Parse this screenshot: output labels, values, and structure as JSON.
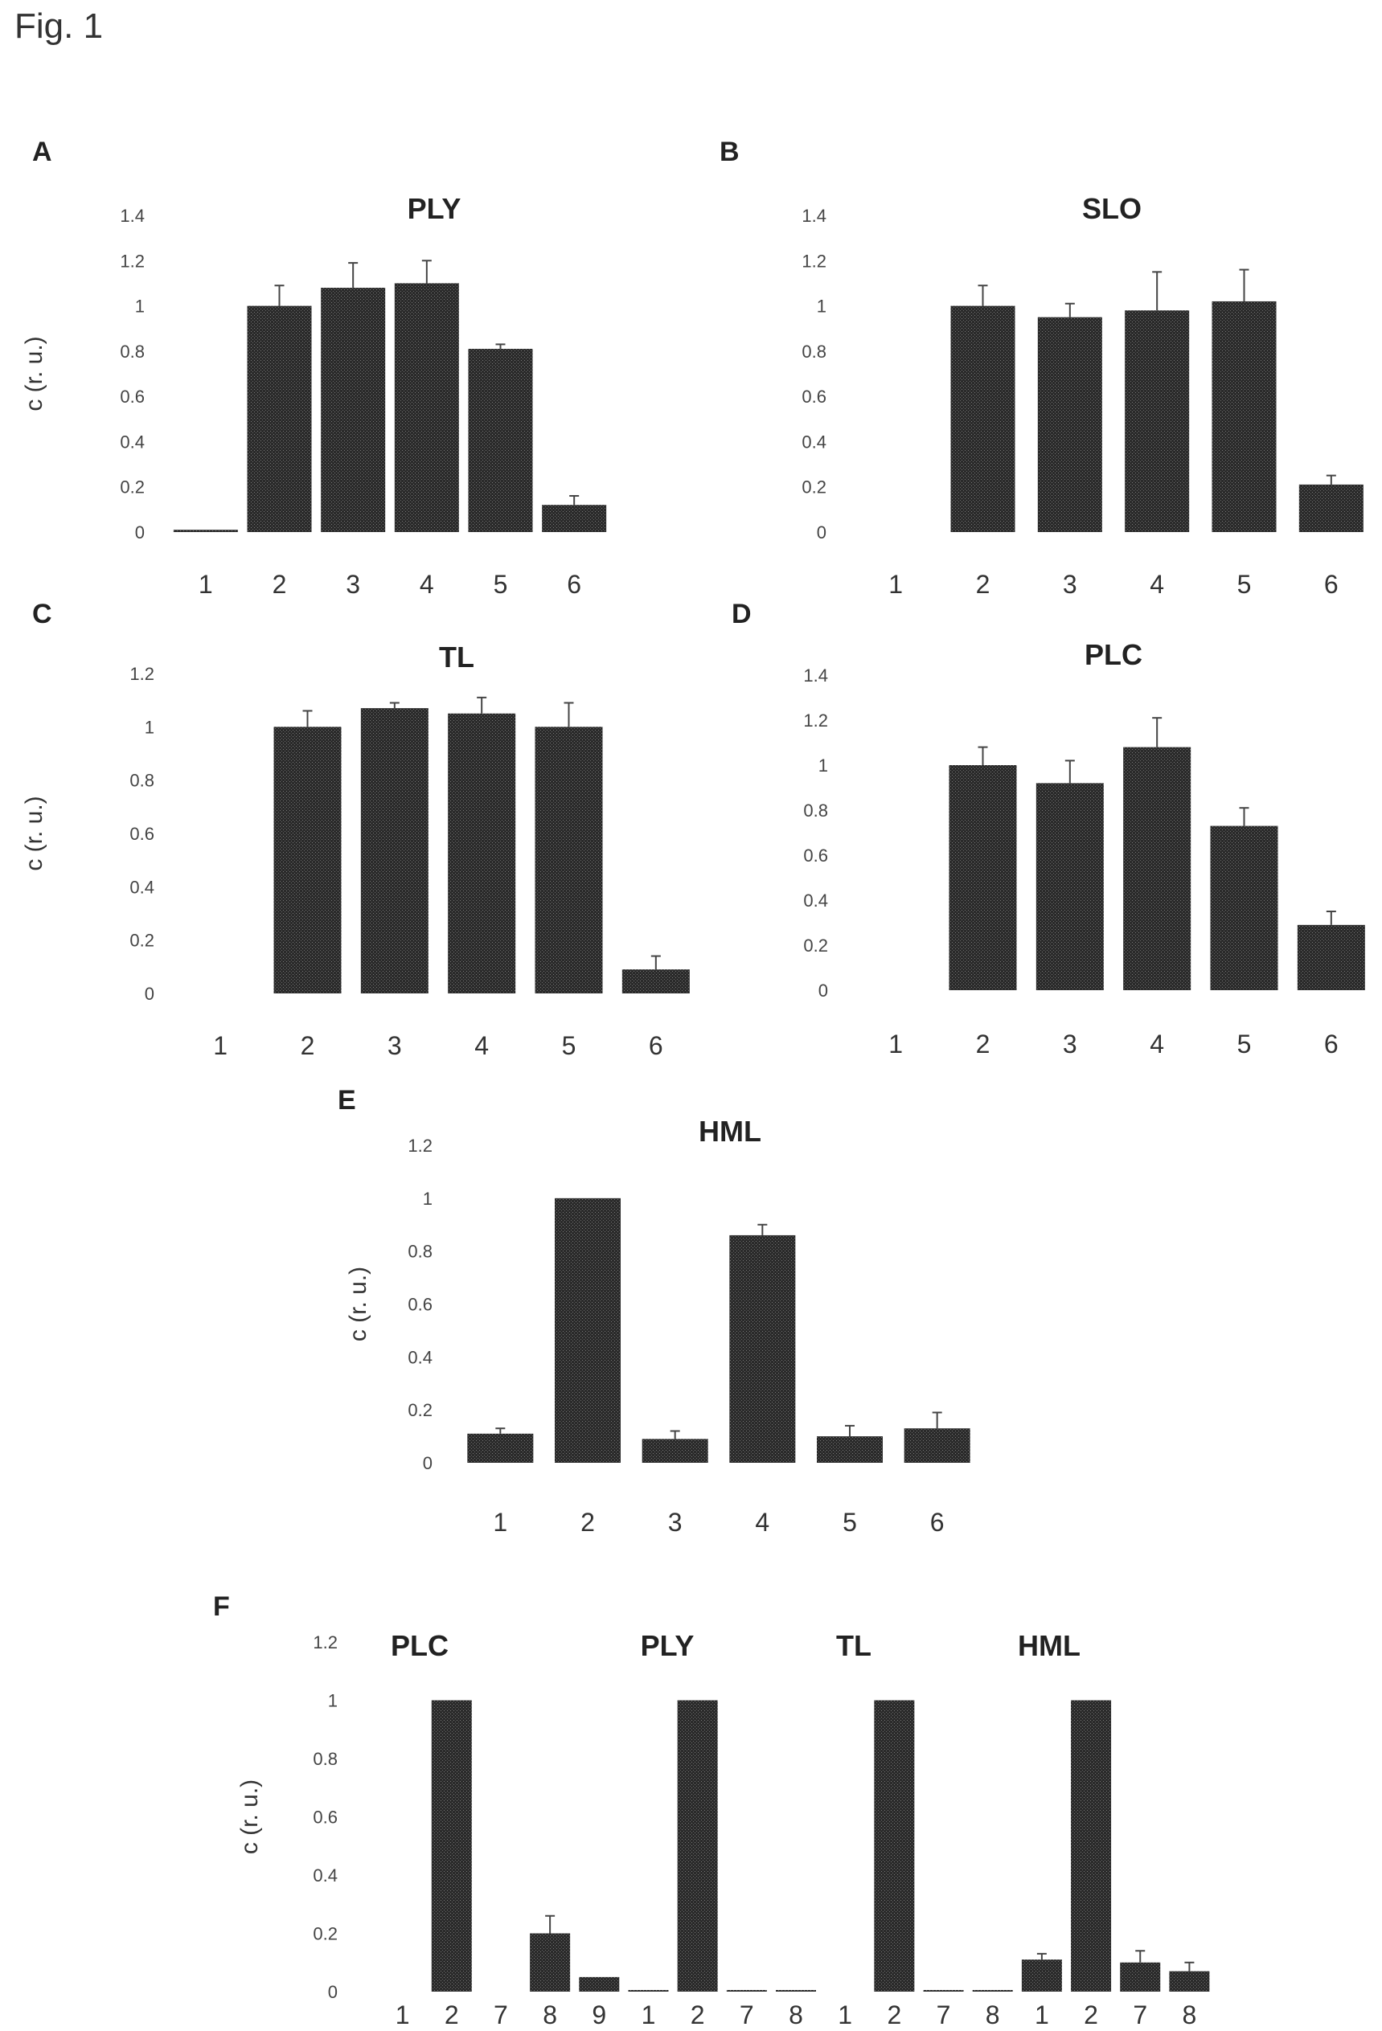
{
  "figure_title": "Fig. 1",
  "chart_data": [
    {
      "panel": "A",
      "type": "bar",
      "title": "PLY",
      "ylabel": "c (r. u.)",
      "yticks": [
        "0",
        "0.2",
        "0.4",
        "0.6",
        "0.8",
        "1",
        "1.2",
        "1.4"
      ],
      "ylim": [
        0,
        1.4
      ],
      "categories": [
        "1",
        "2",
        "3",
        "4",
        "5",
        "6"
      ],
      "values": [
        0.01,
        1.0,
        1.08,
        1.1,
        0.81,
        0.12
      ],
      "errors": [
        0,
        0.09,
        0.11,
        0.1,
        0.02,
        0.04
      ]
    },
    {
      "panel": "B",
      "type": "bar",
      "title": "SLO",
      "ylabel": "",
      "yticks": [
        "0",
        "0.2",
        "0.4",
        "0.6",
        "0.8",
        "1",
        "1.2",
        "1.4"
      ],
      "ylim": [
        0,
        1.4
      ],
      "categories": [
        "1",
        "2",
        "3",
        "4",
        "5",
        "6"
      ],
      "values": [
        0,
        1.0,
        0.95,
        0.98,
        1.02,
        0.21
      ],
      "errors": [
        0,
        0.09,
        0.06,
        0.17,
        0.14,
        0.04
      ]
    },
    {
      "panel": "C",
      "type": "bar",
      "title": "TL",
      "ylabel": "c (r. u.)",
      "yticks": [
        "0",
        "0.2",
        "0.4",
        "0.6",
        "0.8",
        "1",
        "1.2"
      ],
      "ylim": [
        0,
        1.2
      ],
      "categories": [
        "1",
        "2",
        "3",
        "4",
        "5",
        "6"
      ],
      "values": [
        0,
        1.0,
        1.07,
        1.05,
        1.0,
        0.09
      ],
      "errors": [
        0,
        0.06,
        0.02,
        0.06,
        0.09,
        0.05
      ]
    },
    {
      "panel": "D",
      "type": "bar",
      "title": "PLC",
      "ylabel": "",
      "yticks": [
        "0",
        "0.2",
        "0.4",
        "0.6",
        "0.8",
        "1",
        "1.2",
        "1.4"
      ],
      "ylim": [
        0,
        1.4
      ],
      "categories": [
        "1",
        "2",
        "3",
        "4",
        "5",
        "6"
      ],
      "values": [
        0,
        1.0,
        0.92,
        1.08,
        0.73,
        0.29
      ],
      "errors": [
        0,
        0.08,
        0.1,
        0.13,
        0.08,
        0.06
      ]
    },
    {
      "panel": "E",
      "type": "bar",
      "title": "HML",
      "ylabel": "c (r. u.)",
      "yticks": [
        "0",
        "0.2",
        "0.4",
        "0.6",
        "0.8",
        "1",
        "1.2"
      ],
      "ylim": [
        0,
        1.2
      ],
      "categories": [
        "1",
        "2",
        "3",
        "4",
        "5",
        "6"
      ],
      "values": [
        0.11,
        1.0,
        0.09,
        0.86,
        0.1,
        0.13
      ],
      "errors": [
        0.02,
        0,
        0.03,
        0.04,
        0.04,
        0.06
      ]
    },
    {
      "panel": "F",
      "type": "bar",
      "title": "",
      "ylabel": "c (r. u.)",
      "yticks": [
        "0",
        "0.2",
        "0.4",
        "0.6",
        "0.8",
        "1",
        "1.2"
      ],
      "ylim": [
        0,
        1.2
      ],
      "group_labels": [
        "PLC",
        "PLY",
        "TL",
        "HML"
      ],
      "categories": [
        "1",
        "2",
        "7",
        "8",
        "9",
        "1",
        "2",
        "7",
        "8",
        "1",
        "2",
        "7",
        "8",
        "1",
        "2",
        "7",
        "8"
      ],
      "values": [
        0,
        1.0,
        0,
        0.2,
        0.05,
        0.005,
        1.0,
        0.005,
        0.005,
        0,
        1.0,
        0.005,
        0.005,
        0.11,
        1.0,
        0.1,
        0.07
      ],
      "errors": [
        0,
        0,
        0,
        0.06,
        0,
        0,
        0,
        0,
        0,
        0,
        0,
        0,
        0,
        0.02,
        0,
        0.04,
        0.03
      ]
    }
  ]
}
